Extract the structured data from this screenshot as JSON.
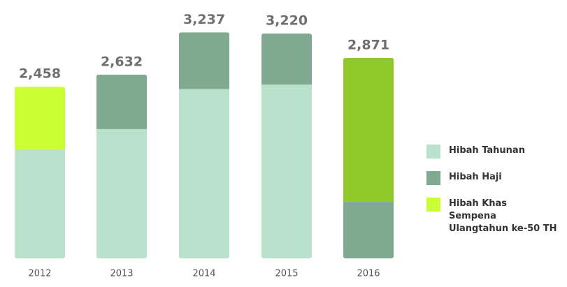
{
  "chart_data": {
    "type": "stacked_bar",
    "categories": [
      "2012",
      "2013",
      "2014",
      "2015",
      "2016"
    ],
    "series": [
      {
        "name": "Hibah Tahunan",
        "color": "#b9e1cc",
        "values": [
          1550,
          1851,
          2425,
          2488,
          null
        ]
      },
      {
        "name": "Hibah Haji",
        "color": "#80aa8f",
        "values": [
          null,
          781,
          812,
          732,
          809
        ]
      },
      {
        "name": "Hibah Khas Sempena Ulangtahun ke-50 TH",
        "color": "#ccff33",
        "point_colors": [
          null,
          null,
          null,
          null,
          "#8fca2a"
        ],
        "values": [
          908,
          null,
          null,
          null,
          2062
        ]
      }
    ],
    "totals": [
      2458,
      2632,
      3237,
      3220,
      2871
    ],
    "total_labels": [
      "2,458",
      "2,632",
      "3,237",
      "3,220",
      "2,871"
    ],
    "ylim": [
      0,
      3300
    ]
  }
}
